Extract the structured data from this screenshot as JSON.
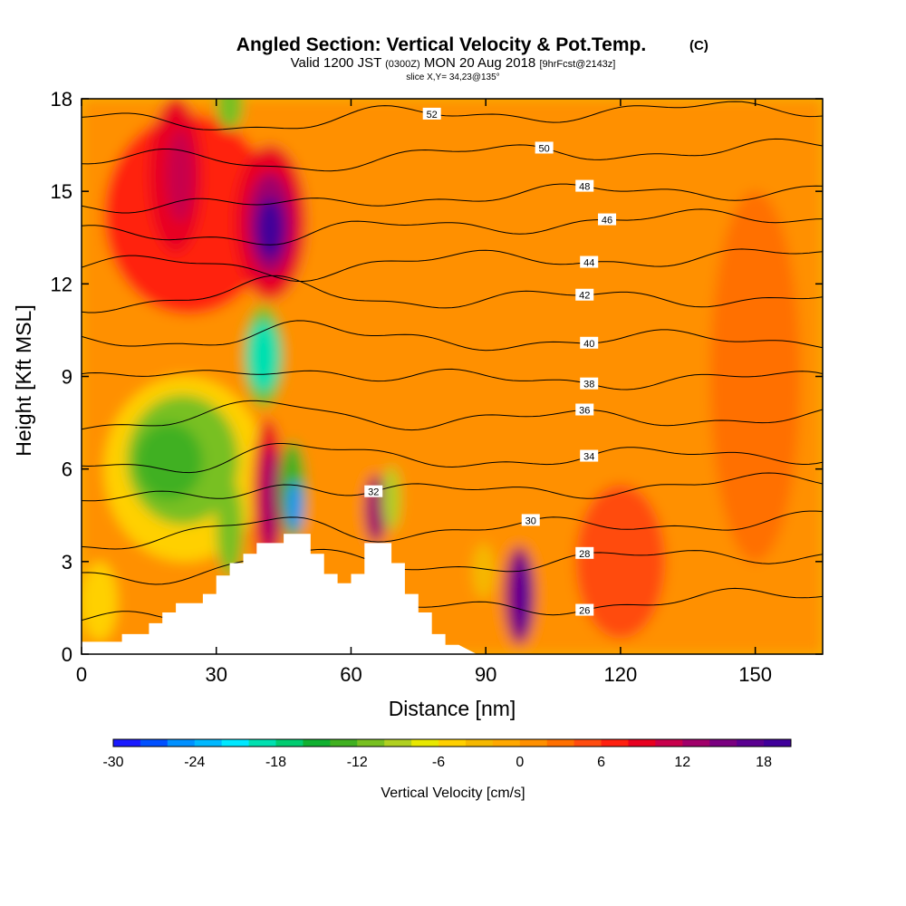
{
  "header": {
    "title": "Angled Section: Vertical Velocity & Pot.Temp.",
    "copyright": "(C)",
    "valid_prefix": "Valid 1200 JST",
    "valid_utc": "(0300Z)",
    "valid_date": "MON 20 Aug 2018",
    "forecast": "[9hrFcst@2143z]",
    "slice": "slice X,Y= 34,23@135°"
  },
  "chart_data": {
    "type": "heatmap",
    "xlabel": "Distance [nm]",
    "ylabel": "Height [Kft MSL]",
    "xlim": [
      0,
      165
    ],
    "ylim": [
      0,
      18
    ],
    "x_ticks": [
      0,
      30,
      60,
      90,
      120,
      150
    ],
    "y_ticks": [
      0,
      3,
      6,
      9,
      12,
      15,
      18
    ],
    "background_color": "#f5b800",
    "shaded_field": "Vertical Velocity",
    "colorbar": {
      "label": "Vertical Velocity [cm/s]",
      "min": -30,
      "max": 20,
      "step": 2,
      "tick_values": [
        -30,
        -24,
        -18,
        -12,
        -6,
        0,
        6,
        12,
        18
      ],
      "colors": [
        "#1a1aff",
        "#0050ff",
        "#0090ff",
        "#00b8ff",
        "#00e8ff",
        "#00e0b0",
        "#00cc70",
        "#10b030",
        "#40b020",
        "#78c020",
        "#b0d020",
        "#e8e800",
        "#ffd000",
        "#f5b800",
        "#ffa800",
        "#ff9000",
        "#ff7000",
        "#ff4c10",
        "#ff2010",
        "#e80020",
        "#c8004c",
        "#a0006a",
        "#7a0080",
        "#5a0090",
        "#40009a"
      ]
    },
    "topography": [
      {
        "x": 0,
        "y": 0.4
      },
      {
        "x": 9,
        "y": 0.4
      },
      {
        "x": 9,
        "y": 0.65
      },
      {
        "x": 15,
        "y": 0.65
      },
      {
        "x": 15,
        "y": 1.0
      },
      {
        "x": 18,
        "y": 1.0
      },
      {
        "x": 18,
        "y": 1.35
      },
      {
        "x": 21,
        "y": 1.35
      },
      {
        "x": 21,
        "y": 1.65
      },
      {
        "x": 27,
        "y": 1.65
      },
      {
        "x": 27,
        "y": 1.95
      },
      {
        "x": 30,
        "y": 1.95
      },
      {
        "x": 30,
        "y": 2.55
      },
      {
        "x": 33,
        "y": 2.55
      },
      {
        "x": 33,
        "y": 2.95
      },
      {
        "x": 36,
        "y": 2.95
      },
      {
        "x": 36,
        "y": 3.25
      },
      {
        "x": 39,
        "y": 3.25
      },
      {
        "x": 39,
        "y": 3.6
      },
      {
        "x": 45,
        "y": 3.6
      },
      {
        "x": 45,
        "y": 3.9
      },
      {
        "x": 51,
        "y": 3.9
      },
      {
        "x": 51,
        "y": 3.25
      },
      {
        "x": 54,
        "y": 3.25
      },
      {
        "x": 54,
        "y": 2.6
      },
      {
        "x": 57,
        "y": 2.6
      },
      {
        "x": 57,
        "y": 2.3
      },
      {
        "x": 60,
        "y": 2.3
      },
      {
        "x": 60,
        "y": 2.6
      },
      {
        "x": 63,
        "y": 2.6
      },
      {
        "x": 63,
        "y": 3.6
      },
      {
        "x": 69,
        "y": 3.6
      },
      {
        "x": 69,
        "y": 2.95
      },
      {
        "x": 72,
        "y": 2.95
      },
      {
        "x": 72,
        "y": 1.95
      },
      {
        "x": 75,
        "y": 1.95
      },
      {
        "x": 75,
        "y": 1.35
      },
      {
        "x": 78,
        "y": 1.35
      },
      {
        "x": 78,
        "y": 0.65
      },
      {
        "x": 81,
        "y": 0.65
      },
      {
        "x": 81,
        "y": 0.3
      },
      {
        "x": 84,
        "y": 0.3
      },
      {
        "x": 88,
        "y": 0.0
      }
    ],
    "velocity_cells": [
      {
        "x": 0,
        "y": 0,
        "w": 165,
        "h": 18,
        "value": 1
      },
      {
        "x": 5,
        "y": 11,
        "w": 38,
        "h": 6.5,
        "value": 6
      },
      {
        "x": 15,
        "y": 13,
        "w": 12,
        "h": 5,
        "value": 8
      },
      {
        "x": 19,
        "y": 14,
        "w": 6,
        "h": 3,
        "value": 10
      },
      {
        "x": 34,
        "y": 11.5,
        "w": 16,
        "h": 5,
        "value": 8
      },
      {
        "x": 37,
        "y": 12.3,
        "w": 10,
        "h": 3.3,
        "value": 12
      },
      {
        "x": 39,
        "y": 12.8,
        "w": 6,
        "h": 2,
        "value": 18
      },
      {
        "x": 30,
        "y": 17,
        "w": 6,
        "h": 1.5,
        "value": -12
      },
      {
        "x": 36,
        "y": 8,
        "w": 9,
        "h": 3.3,
        "value": -12
      },
      {
        "x": 37,
        "y": 8.5,
        "w": 7,
        "h": 2.3,
        "value": -20
      },
      {
        "x": 5,
        "y": 3,
        "w": 36,
        "h": 6,
        "value": -6
      },
      {
        "x": 10,
        "y": 4.2,
        "w": 25,
        "h": 4.2,
        "value": -12
      },
      {
        "x": 12,
        "y": 5,
        "w": 15,
        "h": 2.5,
        "value": -14
      },
      {
        "x": 30,
        "y": 2.5,
        "w": 6,
        "h": 3.2,
        "value": -12
      },
      {
        "x": 38,
        "y": 2.8,
        "w": 7,
        "h": 4.8,
        "value": 8
      },
      {
        "x": 40,
        "y": 3.4,
        "w": 4,
        "h": 3.3,
        "value": 12
      },
      {
        "x": 44,
        "y": 3.7,
        "w": 6,
        "h": 3.2,
        "value": -14
      },
      {
        "x": 46,
        "y": 4.0,
        "w": 3,
        "h": 1.6,
        "value": -26
      },
      {
        "x": 63,
        "y": 3.6,
        "w": 5,
        "h": 2.2,
        "value": 12
      },
      {
        "x": 67,
        "y": 4.0,
        "w": 4,
        "h": 2.1,
        "value": -10
      },
      {
        "x": 94,
        "y": 0.3,
        "w": 7,
        "h": 3.2,
        "value": 12
      },
      {
        "x": 96.5,
        "y": 0.6,
        "w": 3,
        "h": 2.6,
        "value": 18
      },
      {
        "x": 87,
        "y": 1.8,
        "w": 5,
        "h": 1.8,
        "value": -4
      },
      {
        "x": 0,
        "y": 0.4,
        "w": 8,
        "h": 2.6,
        "value": -6
      },
      {
        "x": 110,
        "y": 0.5,
        "w": 20,
        "h": 5,
        "value": 4
      },
      {
        "x": 140,
        "y": 3,
        "w": 20,
        "h": 12,
        "value": 3
      }
    ],
    "theta_contours": [
      {
        "value": 26,
        "y0": 1.0,
        "y1": 1.9,
        "label_x": 112
      },
      {
        "value": 28,
        "y0": 2.5,
        "y1": 3.3,
        "label_x": 112
      },
      {
        "value": 30,
        "y0": 3.6,
        "y1": 4.4,
        "label_x": 100
      },
      {
        "value": 32,
        "y0": 4.9,
        "y1": 5.6,
        "label_x": 65
      },
      {
        "value": 34,
        "y0": 6.1,
        "y1": 6.5,
        "label_x": 113
      },
      {
        "value": 36,
        "y0": 7.5,
        "y1": 7.7,
        "label_x": 112
      },
      {
        "value": 38,
        "y0": 8.9,
        "y1": 8.9,
        "label_x": 113
      },
      {
        "value": 40,
        "y0": 10.1,
        "y1": 10.2,
        "label_x": 113
      },
      {
        "value": 42,
        "y0": 11.4,
        "y1": 11.6,
        "label_x": 112
      },
      {
        "value": 44,
        "y0": 12.6,
        "y1": 12.9,
        "label_x": 113
      },
      {
        "value": 46,
        "y0": 13.6,
        "y1": 14.2,
        "label_x": 117
      },
      {
        "value": 48,
        "y0": 14.6,
        "y1": 15.1,
        "label_x": 112
      },
      {
        "value": 50,
        "y0": 16.0,
        "y1": 16.4,
        "label_x": 103
      },
      {
        "value": 52,
        "y0": 17.3,
        "y1": 17.7,
        "label_x": 78
      }
    ]
  }
}
